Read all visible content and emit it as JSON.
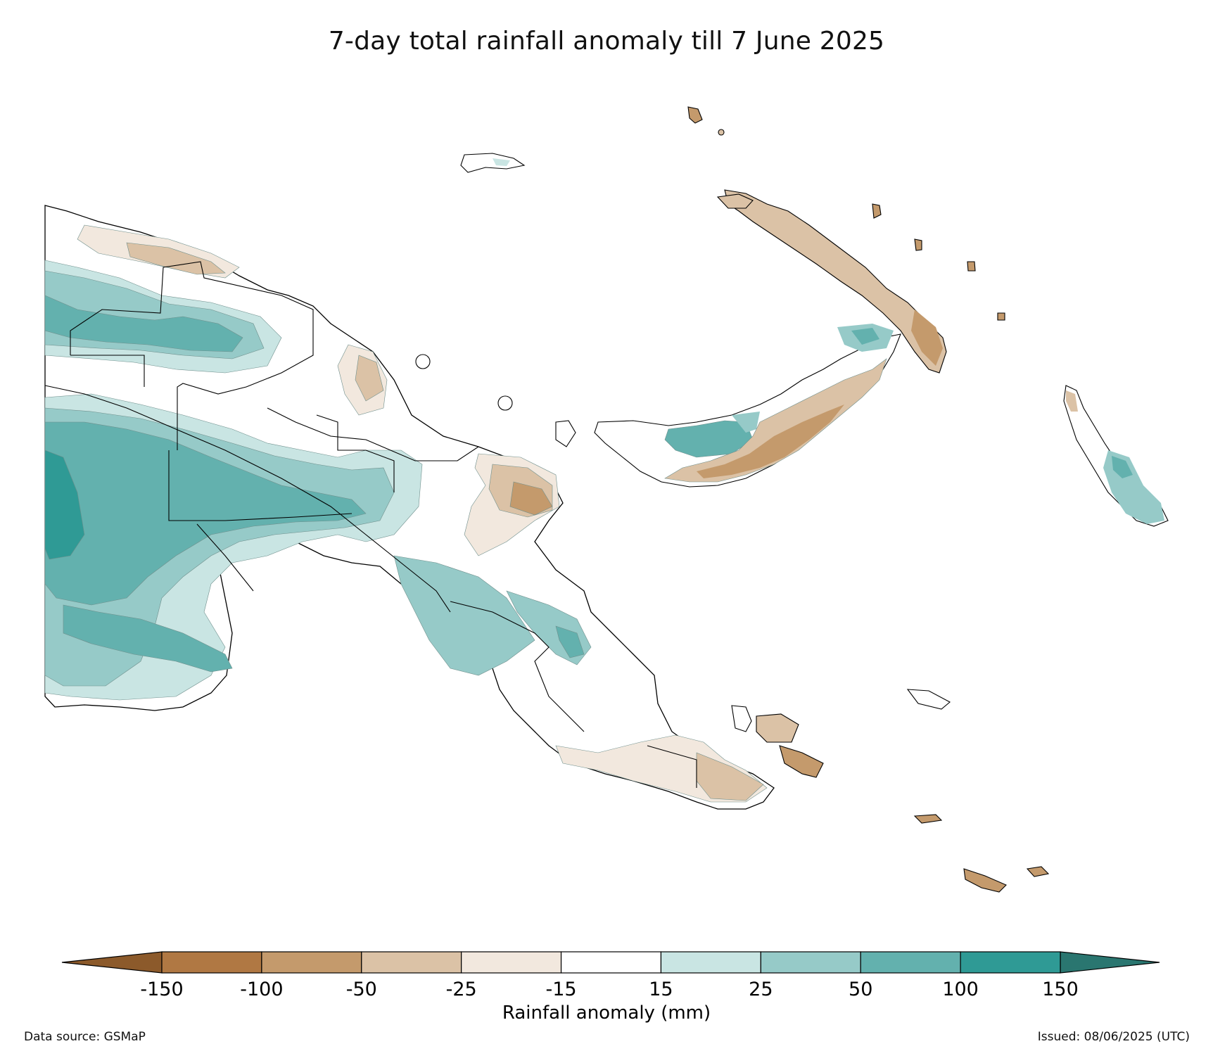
{
  "title": "7-day total rainfall anomaly till 7 June 2025",
  "colorbar": {
    "label": "Rainfall anomaly (mm)",
    "ticks": [
      "-150",
      "-100",
      "-50",
      "-25",
      "-15",
      "15",
      "25",
      "50",
      "100",
      "150"
    ],
    "under_color": "#8c5a2b",
    "over_color": "#2a7670",
    "bins": [
      {
        "from": -150,
        "to": -100,
        "color": "#b07843"
      },
      {
        "from": -100,
        "to": -50,
        "color": "#c49a6c"
      },
      {
        "from": -50,
        "to": -25,
        "color": "#dbc2a6"
      },
      {
        "from": -25,
        "to": -15,
        "color": "#f2e8de"
      },
      {
        "from": -15,
        "to": 15,
        "color": "#ffffff"
      },
      {
        "from": 15,
        "to": 25,
        "color": "#c9e5e3"
      },
      {
        "from": 25,
        "to": 50,
        "color": "#96cac8"
      },
      {
        "from": 50,
        "to": 100,
        "color": "#63b1ae"
      },
      {
        "from": 100,
        "to": 150,
        "color": "#2f9a95"
      }
    ]
  },
  "footer": {
    "source": "Data source: GSMaP",
    "issued": "Issued: 08/06/2025 (UTC)"
  },
  "map": {
    "region": "Papua New Guinea",
    "land_color": "#ffffff",
    "border_color": "#000000"
  }
}
